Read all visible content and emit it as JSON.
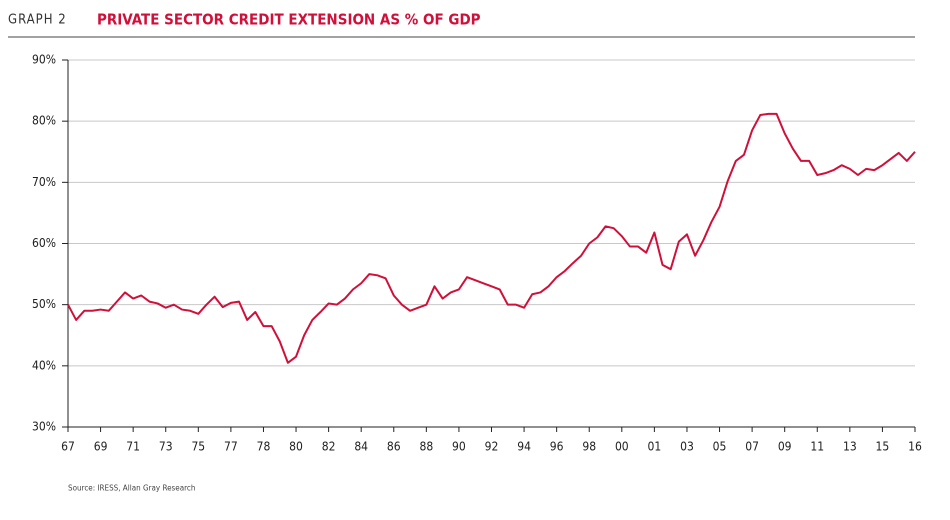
{
  "chart_data": {
    "type": "line",
    "label": "GRAPH 2",
    "title": "PRIVATE SECTOR CREDIT EXTENSION AS % OF GDP",
    "source": "Source: IRESS, Allan Gray Research",
    "categories": [
      "67",
      null,
      null,
      null,
      "69",
      null,
      null,
      null,
      "71",
      null,
      null,
      null,
      "73",
      null,
      null,
      null,
      "75",
      null,
      null,
      null,
      "77",
      null,
      null,
      null,
      "78",
      null,
      null,
      null,
      "80",
      null,
      null,
      null,
      "82",
      null,
      null,
      null,
      "84",
      null,
      null,
      null,
      "86",
      null,
      null,
      null,
      "88",
      null,
      null,
      null,
      "90",
      null,
      null,
      null,
      "92",
      null,
      null,
      null,
      "94",
      null,
      null,
      null,
      "96",
      null,
      null,
      null,
      "98",
      null,
      null,
      null,
      "00",
      null,
      null,
      null,
      "01",
      null,
      null,
      null,
      "03",
      null,
      null,
      null,
      "05",
      null,
      null,
      null,
      "07",
      null,
      null,
      null,
      "09",
      null,
      null,
      null,
      "11",
      null,
      null,
      null,
      "13",
      null,
      null,
      null,
      "15",
      null,
      null,
      null,
      "16"
    ],
    "series": [
      {
        "color": "#d0103a",
        "values": [
          50,
          47.5,
          49,
          49,
          49.2,
          49,
          50.5,
          52,
          51,
          51.5,
          50.5,
          50.2,
          49.5,
          50,
          49.2,
          49,
          48.5,
          50,
          51.3,
          49.6,
          50.3,
          50.5,
          47.5,
          48.8,
          46.5,
          46.5,
          44,
          40.5,
          41.5,
          45,
          47.5,
          48.8,
          50.2,
          50,
          51,
          52.5,
          53.5,
          55,
          54.8,
          54.3,
          51.5,
          50,
          49,
          49.5,
          50,
          53,
          51,
          52,
          52.5,
          54.5,
          54,
          53.5,
          53,
          52.5,
          50,
          50,
          49.5,
          51.7,
          52,
          53,
          54.5,
          55.5,
          56.8,
          58,
          60,
          61,
          62.8,
          62.5,
          61.2,
          59.5,
          59.5,
          58.5,
          61.8,
          56.5,
          55.8,
          60.3,
          61.5,
          58,
          60.5,
          63.5,
          66,
          70.2,
          73.5,
          74.5,
          78.5,
          81,
          81.2,
          81.2,
          78,
          75.5,
          73.5,
          73.5,
          71.2,
          71.5,
          72,
          72.8,
          72.2,
          71.2,
          72.2,
          72,
          72.8,
          73.8,
          74.8,
          73.5,
          75
        ]
      }
    ],
    "ylim": [
      30,
      90
    ],
    "yticks": [
      {
        "value": 30,
        "label": "30%"
      },
      {
        "value": 40,
        "label": "40%"
      },
      {
        "value": 50,
        "label": "50%"
      },
      {
        "value": 60,
        "label": "60%"
      },
      {
        "value": 70,
        "label": "70%"
      },
      {
        "value": 80,
        "label": "80%"
      },
      {
        "value": 90,
        "label": "90%"
      }
    ],
    "grid": true
  }
}
